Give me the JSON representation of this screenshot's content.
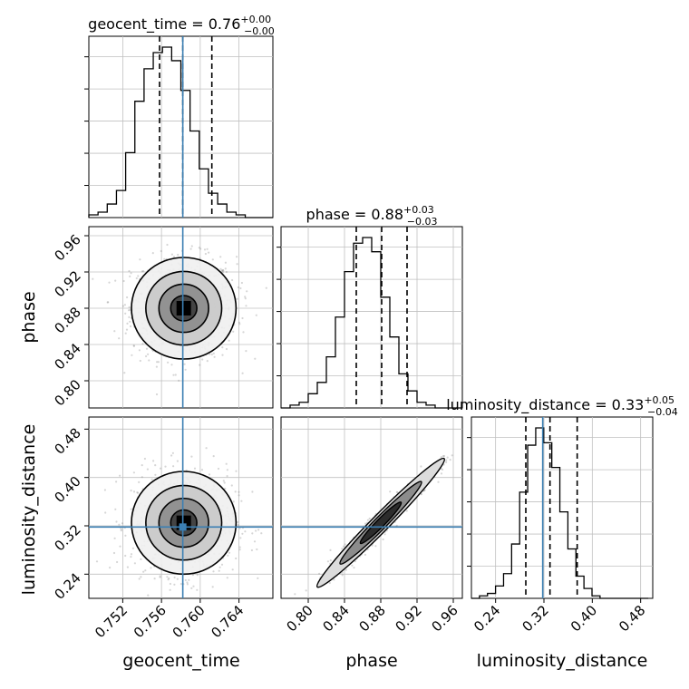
{
  "chart_data": {
    "type": "corner",
    "colors": {
      "truth": "#3b7fb3",
      "grid": "#c0c0c0",
      "hist": "#000000",
      "scatter": "#8a8a8a"
    },
    "parameters": [
      {
        "name": "geocent_time",
        "xlabel": "geocent_time",
        "title": {
          "main": "geocent_time = 0.76",
          "sup": "+0.00",
          "sub": "−0.00"
        },
        "range": [
          0.7485,
          0.7675
        ],
        "ticks": [
          0.752,
          0.756,
          0.76,
          0.764
        ],
        "tick_labels": [
          "0.752",
          "0.756",
          "0.760",
          "0.764"
        ],
        "quantiles": [
          0.7558,
          0.7582,
          0.7612
        ],
        "truth": 0.7582,
        "hist": {
          "edges_start": 0.7485,
          "bin_width": 0.00095,
          "counts": [
            1,
            2,
            5,
            10,
            24,
            43,
            55,
            61,
            63,
            58,
            47,
            32,
            18,
            9,
            5,
            2,
            1,
            0,
            0,
            0
          ]
        },
        "contour_center": 0.7583
      },
      {
        "name": "phase",
        "xlabel": "phase",
        "ylabel": "phase",
        "title": {
          "main": "phase = 0.88",
          "sup": "+0.03",
          "sub": "−0.03"
        },
        "range": [
          0.77,
          0.97
        ],
        "ticks": [
          0.8,
          0.84,
          0.88,
          0.92,
          0.96
        ],
        "tick_labels": [
          "0.80",
          "0.84",
          "0.88",
          "0.92",
          "0.96"
        ],
        "quantiles": [
          0.853,
          0.881,
          0.909
        ],
        "hist": {
          "edges_start": 0.77,
          "bin_width": 0.01,
          "counts": [
            0,
            1,
            2,
            5,
            9,
            18,
            32,
            48,
            58,
            60,
            55,
            39,
            25,
            12,
            6,
            2,
            1,
            0,
            0,
            0
          ]
        },
        "contour_center": 0.88
      },
      {
        "name": "luminosity_distance",
        "xlabel": "luminosity_distance",
        "ylabel": "luminosity_distance",
        "title": {
          "main": "luminosity_distance = 0.33",
          "sup": "+0.05",
          "sub": "−0.04"
        },
        "range": [
          0.2,
          0.5
        ],
        "ticks": [
          0.24,
          0.32,
          0.4,
          0.48
        ],
        "tick_labels": [
          "0.24",
          "0.32",
          "0.40",
          "0.48"
        ],
        "quantiles": [
          0.29,
          0.33,
          0.375
        ],
        "truth": 0.318,
        "hist": {
          "edges_start": 0.2,
          "bin_width": 0.0133,
          "counts": [
            0,
            1,
            2,
            5,
            10,
            22,
            43,
            62,
            69,
            63,
            53,
            35,
            20,
            9,
            4,
            1,
            0,
            0,
            0,
            0,
            0,
            0
          ]
        },
        "contour_center": 0.325
      }
    ]
  }
}
